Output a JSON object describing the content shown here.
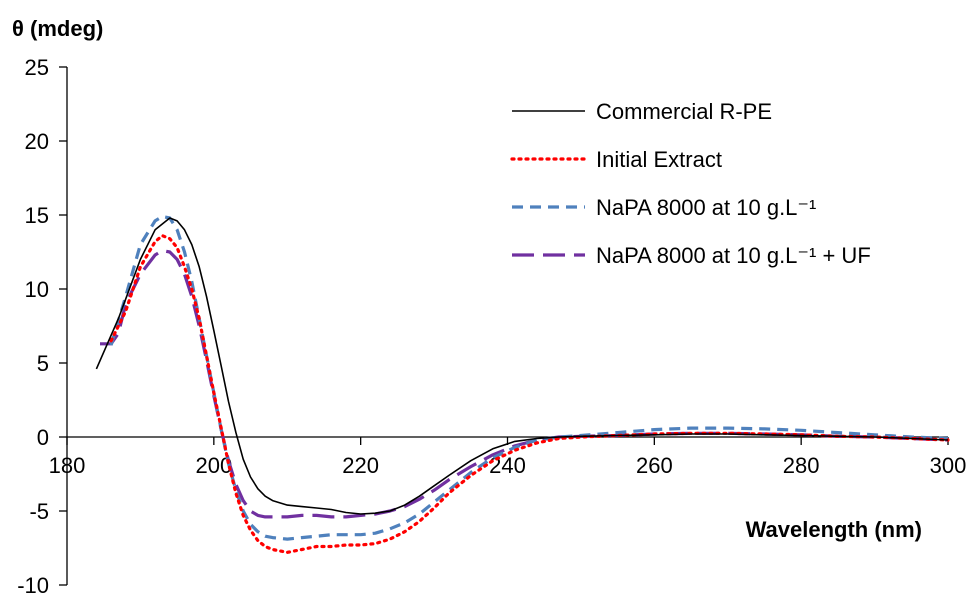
{
  "chart_data": {
    "type": "line",
    "title": "",
    "ylabel": "θ (mdeg)",
    "xlabel": "Wavelength (nm)",
    "xlim": [
      180,
      300
    ],
    "ylim": [
      -10,
      25
    ],
    "x_ticks": [
      "180",
      "200",
      "220",
      "240",
      "260",
      "280",
      "300"
    ],
    "y_ticks": [
      "25",
      "20",
      "15",
      "10",
      "5",
      "0",
      "-5",
      "-10"
    ],
    "grid": false,
    "legend_position": "top-right",
    "series": [
      {
        "name": "Commercial R-PE",
        "color": "#000000",
        "style": "solid",
        "x": [
          184,
          187,
          190,
          192,
          194,
          195,
          196,
          197,
          198,
          199,
          200,
          201,
          202,
          203,
          204,
          205,
          206,
          207,
          208,
          210,
          212,
          214,
          216,
          218,
          220,
          222,
          224,
          226,
          228,
          230,
          232,
          235,
          238,
          241,
          244,
          247,
          250,
          255,
          260,
          265,
          270,
          275,
          280,
          285,
          290,
          295,
          300
        ],
        "y": [
          4.6,
          8,
          12,
          14,
          14.8,
          14.6,
          14.0,
          13.0,
          11.5,
          9.5,
          7.2,
          4.8,
          2.4,
          0.3,
          -1.5,
          -2.7,
          -3.5,
          -4.0,
          -4.3,
          -4.6,
          -4.7,
          -4.8,
          -4.9,
          -5.1,
          -5.2,
          -5.15,
          -5.0,
          -4.6,
          -4.0,
          -3.3,
          -2.6,
          -1.6,
          -0.8,
          -0.3,
          -0.1,
          0.0,
          0.05,
          0.1,
          0.15,
          0.2,
          0.2,
          0.15,
          0.1,
          0.05,
          0.0,
          -0.1,
          -0.2
        ]
      },
      {
        "name": "Initial Extract",
        "color": "#ff0000",
        "style": "dotted",
        "x": [
          186,
          188,
          190,
          192,
          193,
          194,
          195,
          196,
          197,
          198,
          199,
          200,
          201,
          202,
          203,
          204,
          205,
          206,
          207,
          208,
          210,
          212,
          214,
          216,
          218,
          220,
          222,
          224,
          226,
          228,
          230,
          232,
          235,
          238,
          241,
          244,
          247,
          250,
          255,
          260,
          265,
          270,
          275,
          280,
          285,
          290,
          295,
          300
        ],
        "y": [
          6.5,
          8.5,
          11.5,
          13.2,
          13.6,
          13.4,
          12.8,
          11.5,
          10.0,
          8.0,
          5.5,
          3.0,
          0.6,
          -1.8,
          -3.8,
          -5.3,
          -6.3,
          -7.0,
          -7.4,
          -7.6,
          -7.8,
          -7.6,
          -7.4,
          -7.4,
          -7.3,
          -7.3,
          -7.2,
          -6.9,
          -6.4,
          -5.7,
          -4.8,
          -3.8,
          -2.6,
          -1.6,
          -0.9,
          -0.4,
          -0.1,
          0.0,
          0.1,
          0.2,
          0.25,
          0.25,
          0.2,
          0.15,
          0.05,
          0.0,
          -0.1,
          -0.2
        ]
      },
      {
        "name": "NaPA 8000 at 10 g.L⁻¹",
        "color": "#4f81bd",
        "style": "dashed",
        "x": [
          186,
          188,
          190,
          192,
          193,
          194,
          195,
          196,
          197,
          198,
          199,
          200,
          201,
          202,
          203,
          204,
          205,
          206,
          207,
          208,
          210,
          212,
          214,
          216,
          218,
          220,
          222,
          224,
          226,
          228,
          230,
          232,
          235,
          238,
          241,
          244,
          247,
          250,
          255,
          260,
          265,
          270,
          275,
          280,
          285,
          290,
          295,
          300
        ],
        "y": [
          6.2,
          9.5,
          13.0,
          14.6,
          14.9,
          14.8,
          14.0,
          12.5,
          10.5,
          8.0,
          5.5,
          3.0,
          0.5,
          -1.8,
          -3.6,
          -5.0,
          -5.9,
          -6.4,
          -6.7,
          -6.8,
          -6.9,
          -6.8,
          -6.7,
          -6.6,
          -6.6,
          -6.6,
          -6.5,
          -6.2,
          -5.8,
          -5.2,
          -4.4,
          -3.6,
          -2.4,
          -1.4,
          -0.7,
          -0.2,
          0.0,
          0.1,
          0.3,
          0.5,
          0.6,
          0.6,
          0.55,
          0.45,
          0.3,
          0.15,
          0.0,
          -0.1
        ]
      },
      {
        "name": "NaPA 8000 at 10 g.L⁻¹ + UF",
        "color": "#7030a0",
        "style": "long-dash",
        "x": [
          184.5,
          186,
          187,
          188,
          190,
          192,
          193,
          194,
          195,
          196,
          197,
          198,
          199,
          200,
          201,
          202,
          203,
          204,
          205,
          206,
          207,
          208,
          210,
          212,
          214,
          216,
          218,
          220,
          222,
          224,
          226,
          228,
          230,
          232,
          235,
          238,
          241,
          244,
          247,
          250,
          255,
          260,
          265,
          270,
          275,
          280,
          285,
          290,
          295,
          300
        ],
        "y": [
          6.3,
          6.3,
          7.0,
          9.0,
          11.0,
          12.3,
          12.6,
          12.5,
          12.0,
          11.0,
          9.5,
          7.5,
          5.2,
          2.8,
          0.5,
          -1.6,
          -3.2,
          -4.3,
          -5.0,
          -5.3,
          -5.4,
          -5.4,
          -5.4,
          -5.3,
          -5.3,
          -5.4,
          -5.4,
          -5.3,
          -5.2,
          -5.0,
          -4.7,
          -4.2,
          -3.6,
          -2.9,
          -2.0,
          -1.2,
          -0.6,
          -0.2,
          0.0,
          0.05,
          0.1,
          0.2,
          0.25,
          0.25,
          0.2,
          0.15,
          0.05,
          0.0,
          -0.1,
          -0.2
        ]
      }
    ]
  }
}
